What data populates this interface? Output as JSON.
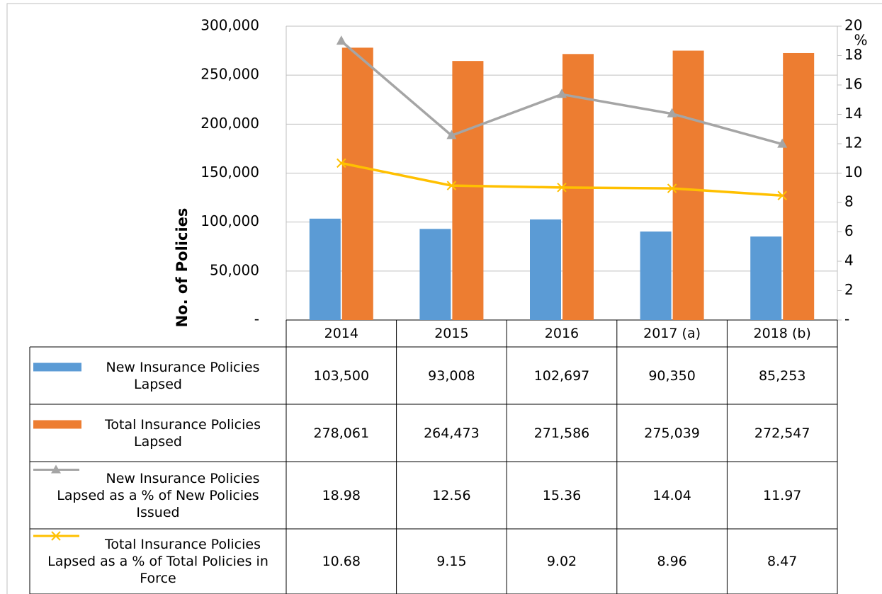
{
  "chart_data": {
    "type": "bar-line-table",
    "categories": [
      "2014",
      "2015",
      "2016",
      "2017 (a)",
      "2018 (b)"
    ],
    "y_label": "No. of Policies",
    "y2_label": "%",
    "ylim": [
      0,
      300000
    ],
    "yticks": [
      {
        "value": 0,
        "label": "-"
      },
      {
        "value": 50000,
        "label": "50,000"
      },
      {
        "value": 100000,
        "label": "100,000"
      },
      {
        "value": 150000,
        "label": "150,000"
      },
      {
        "value": 200000,
        "label": "200,000"
      },
      {
        "value": 250000,
        "label": "250,000"
      },
      {
        "value": 300000,
        "label": "300,000"
      }
    ],
    "y2lim": [
      0,
      20
    ],
    "y2ticks": [
      {
        "value": 0,
        "label": "-"
      },
      2,
      4,
      6,
      8,
      10,
      12,
      14,
      16,
      18,
      20
    ],
    "grid": true,
    "series": [
      {
        "name": "New Insurance Policies Lapsed",
        "type": "bar",
        "color": "#5b9bd5",
        "values": [
          103500,
          93008,
          102697,
          90350,
          85253
        ],
        "value_labels": [
          "103,500",
          "93,008",
          "102,697",
          "90,350",
          "85,253"
        ]
      },
      {
        "name": "Total Insurance Policies Lapsed",
        "type": "bar",
        "color": "#ed7d31",
        "values": [
          278061,
          264473,
          271586,
          275039,
          272547
        ],
        "value_labels": [
          "278,061",
          "264,473",
          "271,586",
          "275,039",
          "272,547"
        ]
      },
      {
        "name": "New Insurance Policies Lapsed as a % of New Policies Issued",
        "type": "line",
        "marker": "triangle",
        "axis": "y2",
        "color": "#a5a5a5",
        "values": [
          18.98,
          12.56,
          15.36,
          14.04,
          11.97
        ]
      },
      {
        "name": "Total Insurance Policies Lapsed as a % of  Total Policies in Force",
        "type": "line",
        "marker": "x",
        "axis": "y2",
        "color": "#ffc000",
        "values": [
          10.68,
          9.15,
          9.02,
          8.96,
          8.47
        ]
      }
    ]
  }
}
